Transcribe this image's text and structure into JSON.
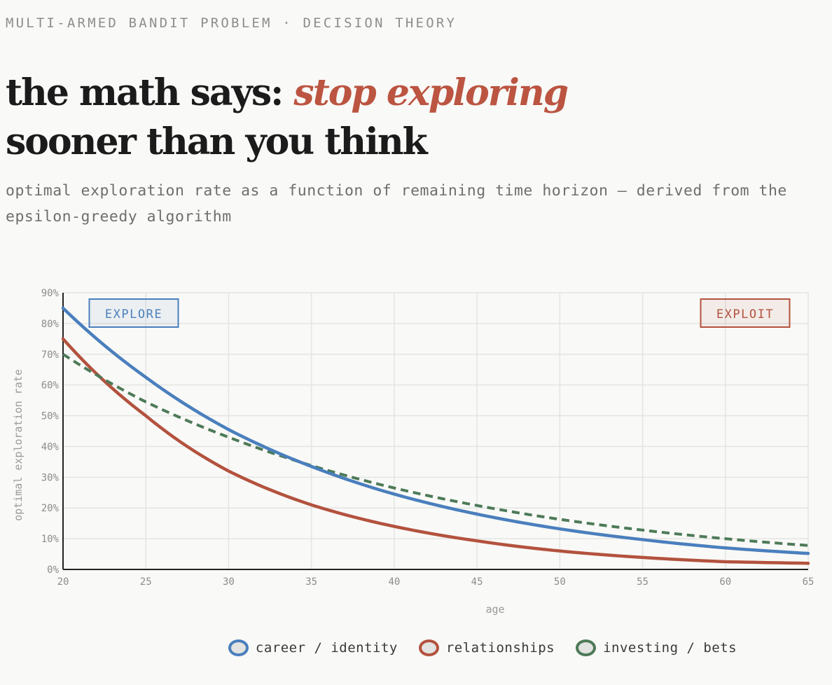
{
  "header": {
    "kicker": "MULTI-ARMED BANDIT PROBLEM · DECISION THEORY",
    "title_part1": "the math says: ",
    "title_accent": "stop exploring",
    "title_line2": "sooner than you think",
    "subtitle": "optimal exploration rate as a function of remaining time horizon — derived from the epsilon-greedy algorithm"
  },
  "chart_data": {
    "type": "line",
    "xlabel": "age",
    "ylabel": "optimal exploration rate",
    "xlim": [
      20,
      65
    ],
    "ylim": [
      0,
      90
    ],
    "x_ticks": [
      20,
      25,
      30,
      35,
      40,
      45,
      50,
      55,
      60,
      65
    ],
    "y_ticks": [
      0,
      10,
      20,
      30,
      40,
      50,
      60,
      70,
      80,
      90
    ],
    "y_tick_format": "%",
    "grid": true,
    "annotations": [
      {
        "text": "EXPLORE",
        "position": "top-left",
        "color": "#4a7fbd"
      },
      {
        "text": "EXPLOIT",
        "position": "top-right",
        "color": "#b3523e"
      }
    ],
    "x": [
      20,
      25,
      30,
      35,
      40,
      45,
      50,
      55,
      60,
      65
    ],
    "series": [
      {
        "name": "career / identity",
        "color": "#4a7fbd",
        "dashed": false,
        "values": [
          85,
          62.5,
          45.5,
          33.5,
          24.5,
          18,
          13.2,
          9.7,
          7,
          5.2
        ]
      },
      {
        "name": "relationships",
        "color": "#b3523e",
        "dashed": false,
        "values": [
          75,
          50,
          32,
          21,
          14,
          9.3,
          6,
          3.9,
          2.5,
          2
        ]
      },
      {
        "name": "investing / bets",
        "color": "#4d7a58",
        "dashed": true,
        "values": [
          70,
          54.5,
          43,
          33.8,
          26.5,
          20.8,
          16.3,
          12.8,
          10,
          7.8
        ]
      }
    ]
  },
  "legend": [
    {
      "label": "career / identity",
      "color": "#4a7fbd"
    },
    {
      "label": "relationships",
      "color": "#b3523e"
    },
    {
      "label": "investing / bets",
      "color": "#4d7a58"
    }
  ]
}
